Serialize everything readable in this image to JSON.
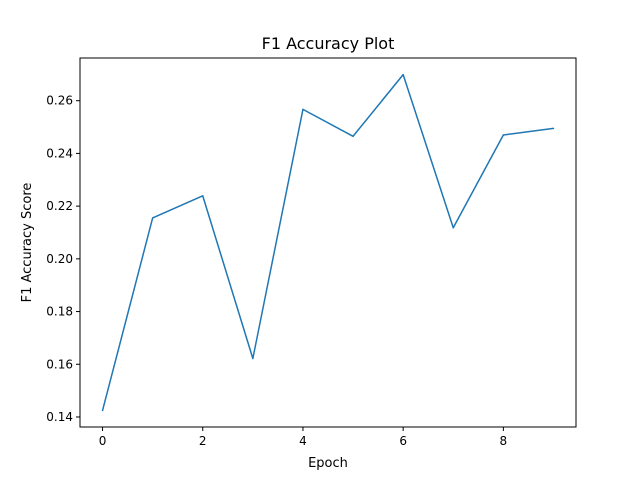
{
  "chart_data": {
    "type": "line",
    "title": "F1 Accuracy Plot",
    "xlabel": "Epoch",
    "ylabel": "F1 Accuracy Score",
    "x": [
      0,
      1,
      2,
      3,
      4,
      5,
      6,
      7,
      8,
      9
    ],
    "series": [
      {
        "values": [
          0.1425,
          0.2155,
          0.2239,
          0.1622,
          0.2567,
          0.2465,
          0.2699,
          0.2118,
          0.247,
          0.2495
        ],
        "color": "#1f77b4"
      }
    ],
    "xlim": [
      -0.45,
      9.45
    ],
    "ylim": [
      0.1362,
      0.2762
    ],
    "xticks": [
      0,
      2,
      4,
      6,
      8
    ],
    "xtick_labels": [
      "0",
      "2",
      "4",
      "6",
      "8"
    ],
    "yticks": [
      0.14,
      0.16,
      0.18,
      0.2,
      0.22,
      0.24,
      0.26
    ],
    "ytick_labels": [
      "0.14",
      "0.16",
      "0.18",
      "0.20",
      "0.22",
      "0.24",
      "0.26"
    ],
    "grid": false,
    "legend": "none"
  }
}
